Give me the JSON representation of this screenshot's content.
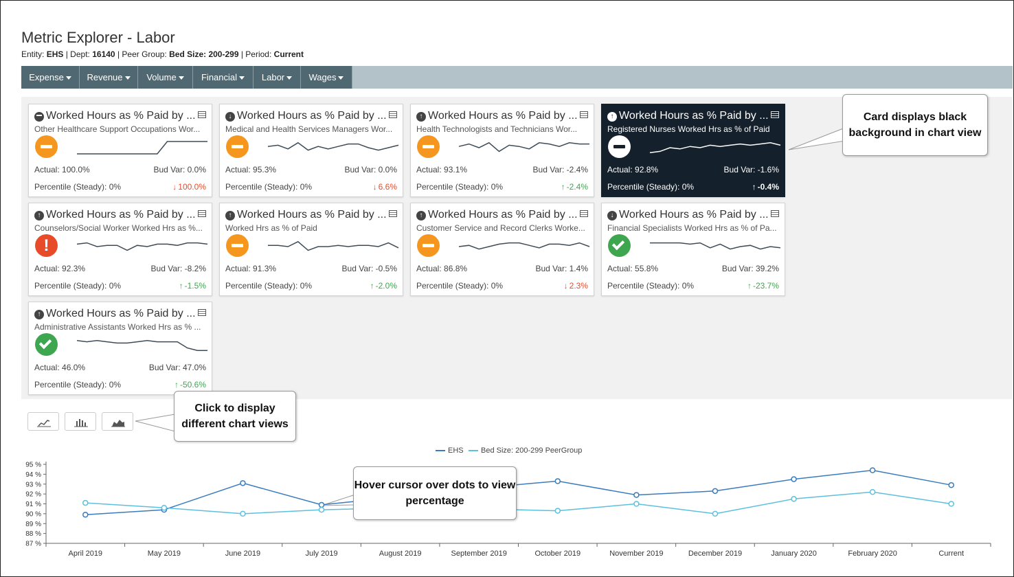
{
  "page": {
    "title": "Metric Explorer - Labor",
    "subtitle": {
      "entity_label": "Entity:",
      "entity": "EHS",
      "dept_label": "| Dept:",
      "dept": "16140",
      "peer_label": "| Peer Group:",
      "peer": "Bed Size: 200-299",
      "period_label": "| Period:",
      "period": "Current"
    }
  },
  "nav": [
    {
      "label": "Expense"
    },
    {
      "label": "Revenue"
    },
    {
      "label": "Volume"
    },
    {
      "label": "Financial"
    },
    {
      "label": "Labor"
    },
    {
      "label": "Wages"
    }
  ],
  "cards": [
    {
      "title": "Worked Hours as % Paid by ...",
      "direction": "neutral",
      "subtitle": "Other Healthcare Support Occupations Wor...",
      "status": "orange-minus",
      "actual": "Actual: 100.0%",
      "budvar": "Bud Var: 0.0%",
      "percentile": "Percentile (Steady): 0%",
      "change": "100.0%",
      "change_dir": "down",
      "spark": [
        0,
        0,
        0,
        0,
        0,
        0,
        0,
        0,
        0,
        1,
        1,
        1,
        1,
        1
      ],
      "dark": false
    },
    {
      "title": "Worked Hours as % Paid by ...",
      "direction": "down",
      "subtitle": "Medical and Health Services Managers Wor...",
      "status": "orange-minus",
      "actual": "Actual: 95.3%",
      "budvar": "Bud Var: 0.0%",
      "percentile": "Percentile (Steady): 0%",
      "change": "6.6%",
      "change_dir": "down",
      "spark": [
        0.6,
        0.7,
        0.4,
        0.9,
        0.3,
        0.6,
        0.4,
        0.6,
        0.8,
        0.8,
        0.5,
        0.3,
        0.5,
        0.7
      ],
      "dark": false
    },
    {
      "title": "Worked Hours as % Paid by ...",
      "direction": "up",
      "subtitle": "Health Technologists and Technicians Wor...",
      "status": "orange-minus",
      "actual": "Actual: 93.1%",
      "budvar": "Bud Var: -2.4%",
      "percentile": "Percentile (Steady): 0%",
      "change": "-2.4%",
      "change_dir": "up",
      "spark": [
        0.6,
        0.8,
        0.5,
        0.9,
        0.2,
        0.7,
        0.6,
        0.4,
        0.9,
        0.8,
        0.6,
        0.9,
        0.8,
        0.8
      ],
      "dark": false
    },
    {
      "title": "Worked Hours as % Paid by ...",
      "direction": "up",
      "subtitle": "Registered Nurses Worked Hrs as % of Paid",
      "status": "white-minus",
      "actual": "Actual: 92.8%",
      "budvar": "Bud Var: -1.6%",
      "percentile": "Percentile (Steady): 0%",
      "change": "-0.4%",
      "change_dir": "up",
      "spark": [
        0.1,
        0.2,
        0.5,
        0.4,
        0.6,
        0.5,
        0.7,
        0.6,
        0.7,
        0.8,
        0.7,
        0.8,
        0.9,
        0.7
      ],
      "dark": true
    },
    {
      "title": "Worked Hours as % Paid by ...",
      "direction": "up",
      "subtitle": "Counselors/Social Worker Worked Hrs as %...",
      "status": "red-excl",
      "actual": "Actual: 92.3%",
      "budvar": "Bud Var: -8.2%",
      "percentile": "Percentile (Steady): 0%",
      "change": "-1.5%",
      "change_dir": "up",
      "spark": [
        0.7,
        0.8,
        0.5,
        0.6,
        0.6,
        0.2,
        0.6,
        0.5,
        0.7,
        0.7,
        0.6,
        0.8,
        0.8,
        0.7
      ],
      "dark": false
    },
    {
      "title": "Worked Hours as % Paid by ...",
      "direction": "up",
      "subtitle": "Worked Hrs as % of Paid",
      "status": "orange-minus",
      "actual": "Actual: 91.3%",
      "budvar": "Bud Var: -0.5%",
      "percentile": "Percentile (Steady): 0%",
      "change": "-2.0%",
      "change_dir": "up",
      "spark": [
        0.6,
        0.6,
        0.5,
        0.9,
        0.2,
        0.5,
        0.5,
        0.6,
        0.5,
        0.6,
        0.6,
        0.5,
        0.8,
        0.4
      ],
      "dark": false
    },
    {
      "title": "Worked Hours as % Paid by ...",
      "direction": "up",
      "subtitle": "Customer Service and Record Clerks Worke...",
      "status": "orange-minus",
      "actual": "Actual: 86.8%",
      "budvar": "Bud Var: 1.4%",
      "percentile": "Percentile (Steady): 0%",
      "change": "2.3%",
      "change_dir": "down",
      "spark": [
        0.5,
        0.6,
        0.3,
        0.5,
        0.7,
        0.8,
        0.8,
        0.6,
        0.4,
        0.7,
        0.7,
        0.6,
        0.8,
        0.5
      ],
      "dark": false
    },
    {
      "title": "Worked Hours as % Paid by ...",
      "direction": "down",
      "subtitle": "Financial Specialists Worked Hrs as % of Pa...",
      "status": "green-check",
      "actual": "Actual: 55.8%",
      "budvar": "Bud Var: 39.2%",
      "percentile": "Percentile (Steady): 0%",
      "change": "-23.7%",
      "change_dir": "up",
      "spark": [
        0.8,
        0.8,
        0.8,
        0.8,
        0.7,
        0.8,
        0.4,
        0.7,
        0.3,
        0.5,
        0.6,
        0.3,
        0.5,
        0.4
      ],
      "dark": false
    },
    {
      "title": "Worked Hours as % Paid by ...",
      "direction": "up",
      "subtitle": "Administrative Assistants Worked Hrs as % ...",
      "status": "green-check",
      "actual": "Actual: 46.0%",
      "budvar": "Bud Var: 47.0%",
      "percentile": "Percentile (Steady): 0%",
      "change": "-50.6%",
      "change_dir": "up",
      "spark": [
        0.9,
        0.8,
        0.9,
        0.8,
        0.7,
        0.7,
        0.8,
        0.9,
        0.8,
        0.8,
        0.8,
        0.3,
        0.1,
        0.1
      ],
      "dark": false
    }
  ],
  "callouts": {
    "card_view": "Card displays black background in chart view",
    "chart_views": "Click to display different chart views",
    "hover": "Hover cursor over dots to view percentage"
  },
  "chart_buttons": [
    {
      "icon": "line-chart-icon"
    },
    {
      "icon": "bar-chart-icon"
    },
    {
      "icon": "area-chart-icon"
    }
  ],
  "chart_data": {
    "type": "line",
    "x": [
      "April 2019",
      "May 2019",
      "June 2019",
      "July 2019",
      "August 2019",
      "September 2019",
      "October 2019",
      "November 2019",
      "December 2019",
      "January 2020",
      "February 2020",
      "Current"
    ],
    "series": [
      {
        "name": "EHS",
        "color": "#3a7bbd",
        "values": [
          89.9,
          90.4,
          93.1,
          90.9,
          91.7,
          92.6,
          93.3,
          91.9,
          92.3,
          93.5,
          94.4,
          92.9
        ]
      },
      {
        "name": "Bed Size: 200-299 PeerGroup",
        "color": "#5bc0de",
        "values": [
          91.1,
          90.6,
          90.0,
          90.4,
          90.6,
          90.5,
          90.3,
          91.0,
          90.0,
          91.5,
          92.2,
          91.0
        ]
      }
    ],
    "yticks": [
      "95 %",
      "94 %",
      "93 %",
      "92 %",
      "91 %",
      "90 %",
      "89 %",
      "88 %",
      "87 %"
    ],
    "ylim": [
      87,
      95
    ]
  }
}
